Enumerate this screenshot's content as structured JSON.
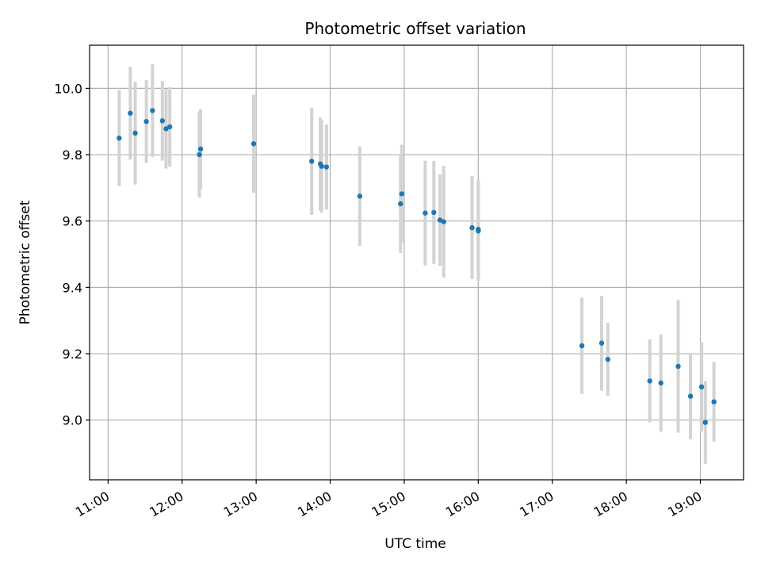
{
  "chart_data": {
    "type": "scatter",
    "title": "Photometric offset variation",
    "xlabel": "UTC time",
    "ylabel": "Photometric offset",
    "x_tick_labels": [
      "11:00",
      "12:00",
      "13:00",
      "14:00",
      "15:00",
      "16:00",
      "17:00",
      "18:00",
      "19:00"
    ],
    "x_ticks_hours": [
      11,
      12,
      13,
      14,
      15,
      16,
      17,
      18,
      19
    ],
    "y_ticks": [
      9.0,
      9.2,
      9.4,
      9.6,
      9.8,
      10.0
    ],
    "y_tick_labels": [
      "9.0",
      "9.2",
      "9.4",
      "9.6",
      "9.8",
      "10.0"
    ],
    "xlim": [
      "10:45",
      "19:35"
    ],
    "ylim": [
      8.82,
      10.13
    ],
    "grid": true,
    "colors": {
      "point": "#1f77b4",
      "errorbar": "#d3d3d3",
      "grid": "#b0b0b0"
    },
    "points": [
      {
        "t": "11:09",
        "y": 9.85,
        "err": 0.145
      },
      {
        "t": "11:18",
        "y": 9.925,
        "err": 0.14
      },
      {
        "t": "11:22",
        "y": 9.865,
        "err": 0.155
      },
      {
        "t": "11:31",
        "y": 9.9,
        "err": 0.125
      },
      {
        "t": "11:36",
        "y": 9.933,
        "err": 0.14
      },
      {
        "t": "11:44",
        "y": 9.902,
        "err": 0.12
      },
      {
        "t": "11:47",
        "y": 9.878,
        "err": 0.12
      },
      {
        "t": "11:50",
        "y": 9.884,
        "err": 0.12
      },
      {
        "t": "12:14",
        "y": 9.8,
        "err": 0.13
      },
      {
        "t": "12:15",
        "y": 9.817,
        "err": 0.12
      },
      {
        "t": "12:58",
        "y": 9.833,
        "err": 0.148
      },
      {
        "t": "13:45",
        "y": 9.78,
        "err": 0.162
      },
      {
        "t": "13:52",
        "y": 9.772,
        "err": 0.14
      },
      {
        "t": "13:53",
        "y": 9.765,
        "err": 0.14
      },
      {
        "t": "13:57",
        "y": 9.763,
        "err": 0.128
      },
      {
        "t": "14:24",
        "y": 9.675,
        "err": 0.15
      },
      {
        "t": "14:57",
        "y": 9.652,
        "err": 0.148
      },
      {
        "t": "14:58",
        "y": 9.682,
        "err": 0.148
      },
      {
        "t": "15:17",
        "y": 9.624,
        "err": 0.158
      },
      {
        "t": "15:24",
        "y": 9.626,
        "err": 0.155
      },
      {
        "t": "15:29",
        "y": 9.603,
        "err": 0.138
      },
      {
        "t": "15:32",
        "y": 9.598,
        "err": 0.168
      },
      {
        "t": "15:55",
        "y": 9.58,
        "err": 0.155
      },
      {
        "t": "16:00",
        "y": 9.575,
        "err": 0.15
      },
      {
        "t": "16:00",
        "y": 9.57,
        "err": 0.15
      },
      {
        "t": "17:24",
        "y": 9.224,
        "err": 0.145
      },
      {
        "t": "17:40",
        "y": 9.232,
        "err": 0.143
      },
      {
        "t": "17:45",
        "y": 9.183,
        "err": 0.11
      },
      {
        "t": "18:19",
        "y": 9.118,
        "err": 0.125
      },
      {
        "t": "18:28",
        "y": 9.112,
        "err": 0.147
      },
      {
        "t": "18:42",
        "y": 9.162,
        "err": 0.2
      },
      {
        "t": "18:52",
        "y": 9.072,
        "err": 0.13
      },
      {
        "t": "19:01",
        "y": 9.1,
        "err": 0.135
      },
      {
        "t": "19:04",
        "y": 8.993,
        "err": 0.125
      },
      {
        "t": "19:11",
        "y": 9.055,
        "err": 0.12
      }
    ]
  }
}
